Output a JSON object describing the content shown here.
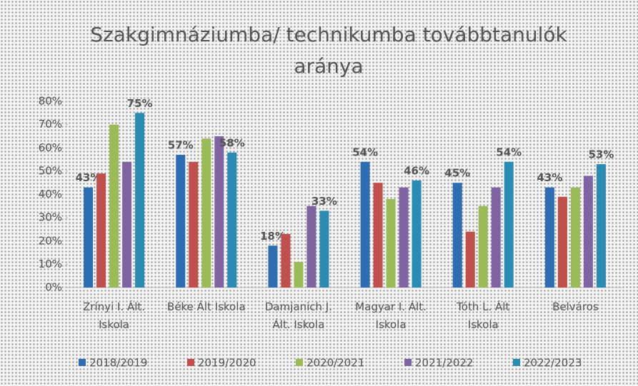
{
  "chart_data": {
    "type": "bar",
    "title": "Szakgimnáziumba/ technikumba továbbtanulók aránya",
    "categories": [
      "Zrínyi I. Ált. Iskola",
      "Béke Ált Iskola",
      "Damjanich J. Ált. Iskola",
      "Magyar I. Ált. Iskola",
      "Tóth L. Ált Iskola",
      "Belváros"
    ],
    "series": [
      {
        "name": "2018/2019",
        "color": "#2f6db3",
        "values": [
          43,
          57,
          18,
          54,
          45,
          43
        ],
        "value_labels": [
          "43%",
          "57%",
          "18%",
          "54%",
          "45%",
          "43%"
        ]
      },
      {
        "name": "2019/2020",
        "color": "#c0504d",
        "values": [
          49,
          54,
          23,
          45,
          24,
          39
        ]
      },
      {
        "name": "2020/2021",
        "color": "#9bbb59",
        "values": [
          70,
          64,
          11,
          38,
          35,
          43
        ]
      },
      {
        "name": "2021/2022",
        "color": "#8064a2",
        "values": [
          54,
          65,
          35,
          43,
          43,
          48
        ]
      },
      {
        "name": "2022/2023",
        "color": "#2b8bb3",
        "values": [
          75,
          58,
          33,
          46,
          54,
          53
        ],
        "value_labels": [
          "75%",
          "58%",
          "33%",
          "46%",
          "54%",
          "53%"
        ]
      }
    ],
    "ylim": [
      0,
      80
    ],
    "yticks": [
      {
        "value": 0,
        "label": "0%"
      },
      {
        "value": 10,
        "label": "10%"
      },
      {
        "value": 20,
        "label": "20%"
      },
      {
        "value": 30,
        "label": "30%"
      },
      {
        "value": 40,
        "label": "40%"
      },
      {
        "value": 50,
        "label": "50%"
      },
      {
        "value": 60,
        "label": "60%"
      },
      {
        "value": 70,
        "label": "70%"
      },
      {
        "value": 80,
        "label": "80%"
      }
    ],
    "legend": "bottom"
  }
}
